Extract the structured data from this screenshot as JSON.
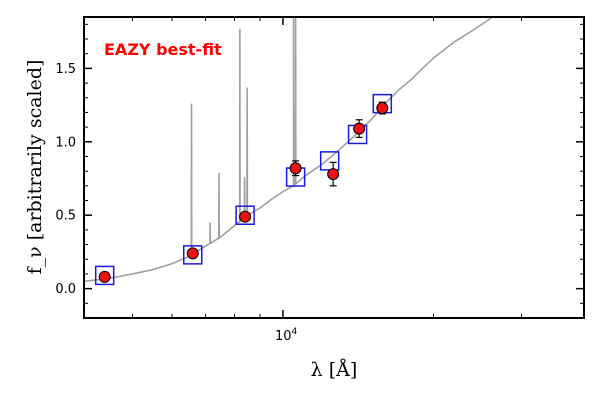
{
  "chart_data": {
    "type": "scatter",
    "title": "",
    "annotation": "EAZY best-fit",
    "annotation_color": "#ff0000",
    "xlabel": "λ [Å]",
    "ylabel": "f_ν [arbitrarily scaled]",
    "xscale": "log",
    "xlim": [
      4000,
      40000
    ],
    "ylim": [
      -0.2,
      1.85
    ],
    "xticks_major": [
      {
        "value": 10000,
        "label": "10⁴"
      }
    ],
    "yticks": [
      {
        "value": 0.0,
        "label": "0.0"
      },
      {
        "value": 0.5,
        "label": "0.5"
      },
      {
        "value": 1.0,
        "label": "1.0"
      },
      {
        "value": 1.5,
        "label": "1.5"
      }
    ],
    "grid": false,
    "series": [
      {
        "kind": "observed",
        "color": "#ee1111",
        "points": [
          {
            "x": 4400,
            "y": 0.08,
            "err": 0.03
          },
          {
            "x": 6600,
            "y": 0.24,
            "err": 0.02
          },
          {
            "x": 8400,
            "y": 0.49,
            "err": 0.02
          },
          {
            "x": 10600,
            "y": 0.82,
            "err": 0.05
          },
          {
            "x": 12600,
            "y": 0.78,
            "err": 0.08
          },
          {
            "x": 14200,
            "y": 1.09,
            "err": 0.06
          },
          {
            "x": 15800,
            "y": 1.23,
            "err": 0.04
          }
        ]
      },
      {
        "kind": "model_photometry",
        "color": "#1a1adc",
        "points": [
          {
            "x": 4400,
            "y": 0.09
          },
          {
            "x": 6600,
            "y": 0.23
          },
          {
            "x": 8400,
            "y": 0.5
          },
          {
            "x": 10600,
            "y": 0.76
          },
          {
            "x": 12400,
            "y": 0.87
          },
          {
            "x": 14100,
            "y": 1.05
          },
          {
            "x": 15800,
            "y": 1.26
          }
        ]
      },
      {
        "kind": "template_spectrum",
        "color": "#a0a0a0",
        "continuum": [
          [
            4000,
            0.05
          ],
          [
            4500,
            0.07
          ],
          [
            5000,
            0.1
          ],
          [
            5500,
            0.13
          ],
          [
            6000,
            0.17
          ],
          [
            6500,
            0.22
          ],
          [
            7000,
            0.29
          ],
          [
            7500,
            0.35
          ],
          [
            8000,
            0.43
          ],
          [
            8500,
            0.5
          ],
          [
            9000,
            0.55
          ],
          [
            9500,
            0.61
          ],
          [
            10000,
            0.66
          ],
          [
            10500,
            0.7
          ],
          [
            11000,
            0.76
          ],
          [
            12000,
            0.85
          ],
          [
            13000,
            0.95
          ],
          [
            14000,
            1.05
          ],
          [
            15000,
            1.15
          ],
          [
            16000,
            1.26
          ],
          [
            17000,
            1.35
          ],
          [
            18000,
            1.42
          ],
          [
            19000,
            1.5
          ],
          [
            20000,
            1.57
          ],
          [
            22000,
            1.68
          ],
          [
            24000,
            1.76
          ],
          [
            25500,
            1.82
          ],
          [
            26500,
            1.86
          ]
        ],
        "emission_lines": [
          {
            "x": 6563,
            "peak": 1.26
          },
          {
            "x": 7150,
            "peak": 0.45
          },
          {
            "x": 7450,
            "peak": 0.79
          },
          {
            "x": 8200,
            "peak": 1.77
          },
          {
            "x": 8380,
            "peak": 0.76
          },
          {
            "x": 8480,
            "peak": 1.37
          },
          {
            "x": 10500,
            "peak": 1.9
          },
          {
            "x": 10600,
            "peak": 1.9
          }
        ]
      }
    ]
  }
}
